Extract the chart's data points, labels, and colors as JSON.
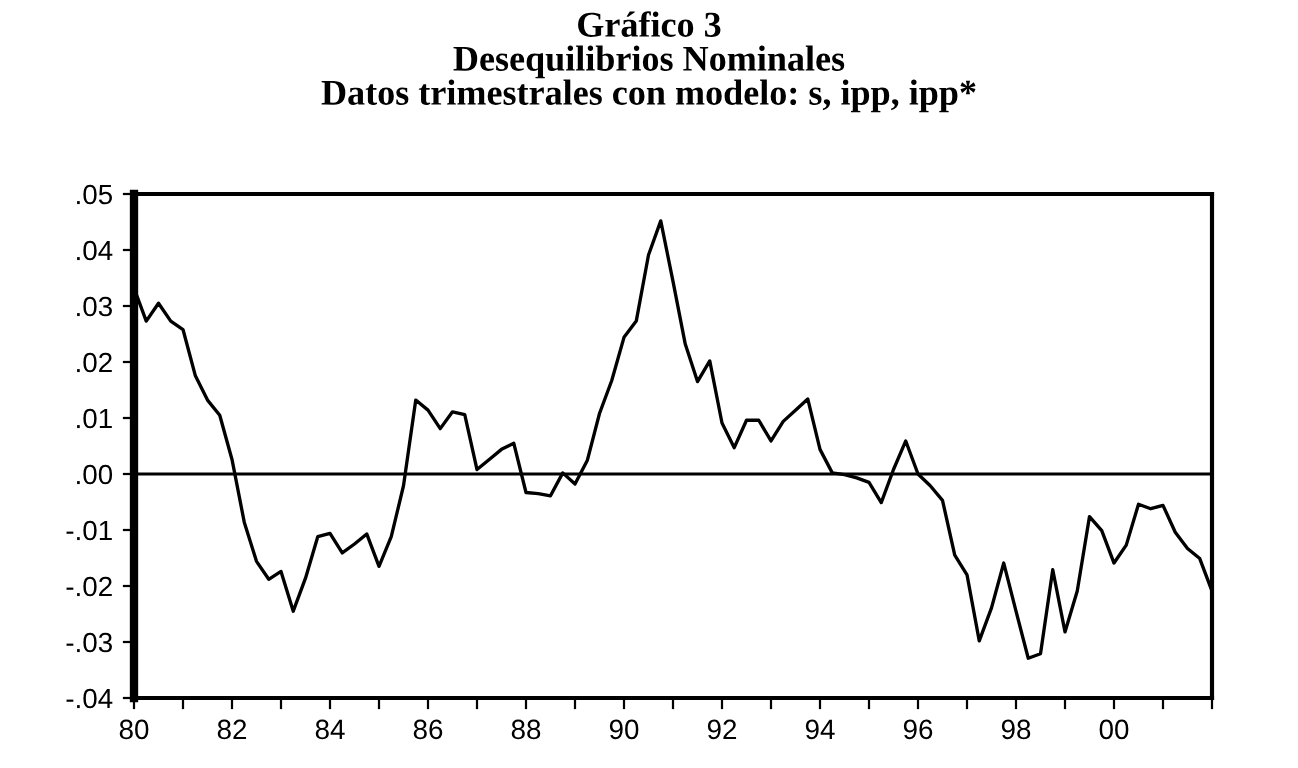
{
  "chart_data": {
    "type": "line",
    "title": "Gráfico 3\nDesequilibrios Nominales\nDatos trimestrales con modelo: s, ipp, ipp*",
    "x": [
      1980,
      1980.25,
      1980.5,
      1980.75,
      1981,
      1981.25,
      1981.5,
      1981.75,
      1982,
      1982.25,
      1982.5,
      1982.75,
      1983,
      1983.25,
      1983.5,
      1983.75,
      1984,
      1984.25,
      1984.5,
      1984.75,
      1985,
      1985.25,
      1985.5,
      1985.75,
      1986,
      1986.25,
      1986.5,
      1986.75,
      1987,
      1987.25,
      1987.5,
      1987.75,
      1988,
      1988.25,
      1988.5,
      1988.75,
      1989,
      1989.25,
      1989.5,
      1989.75,
      1990,
      1990.25,
      1990.5,
      1990.75,
      1991,
      1991.25,
      1991.5,
      1991.75,
      1992,
      1992.25,
      1992.5,
      1992.75,
      1993,
      1993.25,
      1993.5,
      1993.75,
      1994,
      1994.25,
      1994.5,
      1994.75,
      1995,
      1995.25,
      1995.5,
      1995.75,
      1996,
      1996.25,
      1996.5,
      1996.75,
      1997,
      1997.25,
      1997.5,
      1997.75,
      1998,
      1998.25,
      1998.5,
      1998.75,
      1999,
      1999.25,
      1999.5,
      1999.75,
      2000,
      2000.25,
      2000.5,
      2000.75,
      2001,
      2001.25,
      2001.5,
      2001.75,
      2002
    ],
    "series": [
      {
        "color": "#000000",
        "values": [
          0.0332,
          0.0273,
          0.0305,
          0.0273,
          0.0258,
          0.0176,
          0.0132,
          0.0105,
          0.0026,
          -0.0086,
          -0.0156,
          -0.0188,
          -0.0174,
          -0.0245,
          -0.0186,
          -0.0112,
          -0.0106,
          -0.0141,
          -0.0125,
          -0.0107,
          -0.0165,
          -0.0112,
          -0.0021,
          0.0132,
          0.0114,
          0.0081,
          0.0111,
          0.0106,
          0.0008,
          0.0026,
          0.0044,
          0.0055,
          -0.0033,
          -0.0035,
          -0.0039,
          0.0002,
          -0.0018,
          0.0024,
          0.0108,
          0.0167,
          0.0244,
          0.0273,
          0.0391,
          0.0452,
          0.0344,
          0.0232,
          0.0165,
          0.0202,
          0.0091,
          0.0047,
          0.0096,
          0.0096,
          0.0059,
          0.0094,
          0.0114,
          0.0134,
          0.0044,
          0.0002,
          -0.0001,
          -0.0007,
          -0.0015,
          -0.0051,
          0.0008,
          0.0059,
          0.0,
          -0.0021,
          -0.0047,
          -0.0145,
          -0.018,
          -0.0298,
          -0.0239,
          -0.0159,
          -0.0245,
          -0.0329,
          -0.0321,
          -0.0171,
          -0.0282,
          -0.0209,
          -0.0076,
          -0.0101,
          -0.0159,
          -0.0127,
          -0.0054,
          -0.0062,
          -0.0056,
          -0.0104,
          -0.0133,
          -0.0151,
          -0.0209
        ]
      }
    ],
    "xlim": [
      1980,
      2002
    ],
    "xticks": [
      {
        "value": 1980,
        "label": "80"
      },
      {
        "value": 1981,
        "label": null
      },
      {
        "value": 1982,
        "label": "82"
      },
      {
        "value": 1983,
        "label": null
      },
      {
        "value": 1984,
        "label": "84"
      },
      {
        "value": 1985,
        "label": null
      },
      {
        "value": 1986,
        "label": "86"
      },
      {
        "value": 1987,
        "label": null
      },
      {
        "value": 1988,
        "label": "88"
      },
      {
        "value": 1989,
        "label": null
      },
      {
        "value": 1990,
        "label": "90"
      },
      {
        "value": 1991,
        "label": null
      },
      {
        "value": 1992,
        "label": "92"
      },
      {
        "value": 1993,
        "label": null
      },
      {
        "value": 1994,
        "label": "94"
      },
      {
        "value": 1995,
        "label": null
      },
      {
        "value": 1996,
        "label": "96"
      },
      {
        "value": 1997,
        "label": null
      },
      {
        "value": 1998,
        "label": "98"
      },
      {
        "value": 1999,
        "label": null
      },
      {
        "value": 2000,
        "label": "00"
      },
      {
        "value": 2001,
        "label": null
      },
      {
        "value": 2002,
        "label": null
      }
    ],
    "ylim": [
      -0.04,
      0.05
    ],
    "yticks": [
      {
        "value": -0.04,
        "label": "-.04"
      },
      {
        "value": -0.03,
        "label": "-.03"
      },
      {
        "value": -0.02,
        "label": "-.02"
      },
      {
        "value": -0.01,
        "label": "-.01"
      },
      {
        "value": 0.0,
        "label": ".00"
      },
      {
        "value": 0.01,
        "label": ".01"
      },
      {
        "value": 0.02,
        "label": ".02"
      },
      {
        "value": 0.03,
        "label": ".03"
      },
      {
        "value": 0.04,
        "label": ".04"
      },
      {
        "value": 0.05,
        "label": ".05"
      }
    ],
    "ref_lines": [
      {
        "axis": "y",
        "value": 0,
        "color": "#000000"
      }
    ],
    "grid": false,
    "legend": false,
    "marker": "none",
    "line_style": "solid"
  }
}
